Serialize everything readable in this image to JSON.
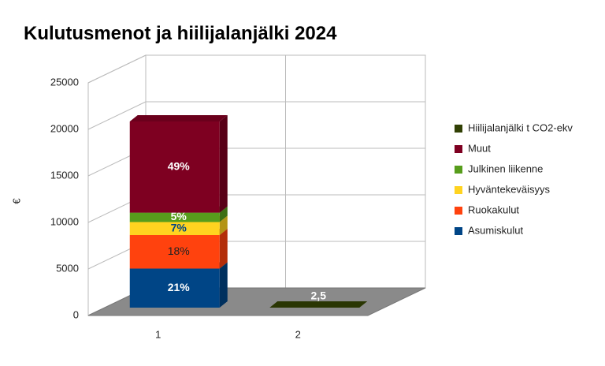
{
  "chart_data": {
    "type": "bar3d_stacked",
    "title": "Kulutusmenot ja hiilijalanjälki 2024",
    "y_label": "€",
    "categories": [
      "1",
      "2"
    ],
    "ylim": [
      0,
      25000
    ],
    "yticks": [
      0,
      5000,
      10000,
      15000,
      20000,
      25000
    ],
    "grid": true,
    "legend": "right",
    "series": [
      {
        "name": "Asumiskulut",
        "color": "#004586",
        "values": [
          4200,
          null
        ],
        "labels": [
          "21%",
          null
        ]
      },
      {
        "name": "Ruokakulut",
        "color": "#ff420e",
        "values": [
          3600,
          null
        ],
        "labels": [
          "18%",
          null
        ]
      },
      {
        "name": "Hyväntekeväisyys",
        "color": "#ffd320",
        "values": [
          1400,
          null
        ],
        "labels": [
          "7%",
          null
        ]
      },
      {
        "name": "Julkinen liikenne",
        "color": "#579d1c",
        "values": [
          1000,
          null
        ],
        "labels": [
          "5%",
          null
        ]
      },
      {
        "name": "Muut",
        "color": "#7e0021",
        "values": [
          9800,
          null
        ],
        "labels": [
          "49%",
          null
        ]
      },
      {
        "name": "Hiilijalanjälki t CO2-ekv",
        "color": "#314004",
        "values": [
          null,
          2.5
        ],
        "labels": [
          null,
          "2,5"
        ]
      }
    ]
  }
}
